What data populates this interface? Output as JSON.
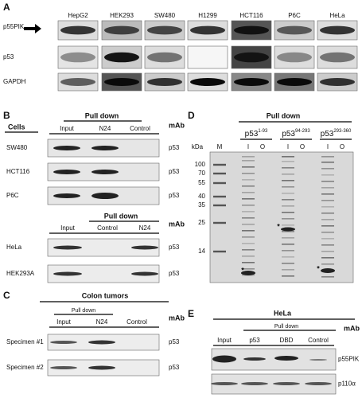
{
  "panel_a": {
    "label": "A",
    "columns": [
      "HepG2",
      "HEK293",
      "SW480",
      "H1299",
      "HCT116",
      "P6C",
      "HeLa"
    ],
    "rows": [
      "p55PIK",
      "p53",
      "GAPDH"
    ]
  },
  "panel_b": {
    "label": "B",
    "top": {
      "cells_label": "Cells",
      "pull_down": "Pull down",
      "mab": "mAb",
      "columns": [
        "Input",
        "N24",
        "Control"
      ],
      "rows": [
        {
          "name": "SW480",
          "antibody": "p53"
        },
        {
          "name": "HCT116",
          "antibody": "p53"
        },
        {
          "name": "P6C",
          "antibody": "p53"
        }
      ]
    },
    "bottom": {
      "pull_down": "Pull down",
      "mab": "mAb",
      "columns": [
        "Input",
        "Control",
        "N24"
      ],
      "rows": [
        {
          "name": "HeLa",
          "antibody": "p53"
        },
        {
          "name": "HEK293A",
          "antibody": "p53"
        }
      ]
    }
  },
  "panel_c": {
    "label": "C",
    "title": "Colon tumors",
    "pull_down": "Pull down",
    "mab": "mAb",
    "columns": [
      "Input",
      "N24",
      "Control"
    ],
    "rows": [
      {
        "name": "Specimen #1",
        "antibody": "p53"
      },
      {
        "name": "Specimen #2",
        "antibody": "p53"
      }
    ]
  },
  "panel_d": {
    "label": "D",
    "pull_down": "Pull down",
    "constructs": [
      {
        "base": "p53",
        "sup": "1-93"
      },
      {
        "base": "p53",
        "sup": "94-293"
      },
      {
        "base": "p53",
        "sup": "293-360"
      }
    ],
    "kda_label": "kDa",
    "lanes": [
      "M",
      "I",
      "O",
      "I",
      "O",
      "I",
      "O"
    ],
    "markers": [
      100,
      70,
      55,
      40,
      35,
      25,
      14
    ],
    "asterisks": [
      "*",
      "*",
      "*"
    ]
  },
  "panel_e": {
    "label": "E",
    "title": "HeLa",
    "pull_down": "Pull down",
    "mab": "mAb",
    "columns": [
      "Input",
      "p53",
      "DBD",
      "Control"
    ],
    "rows": [
      "p55PIK",
      "p110α"
    ]
  }
}
